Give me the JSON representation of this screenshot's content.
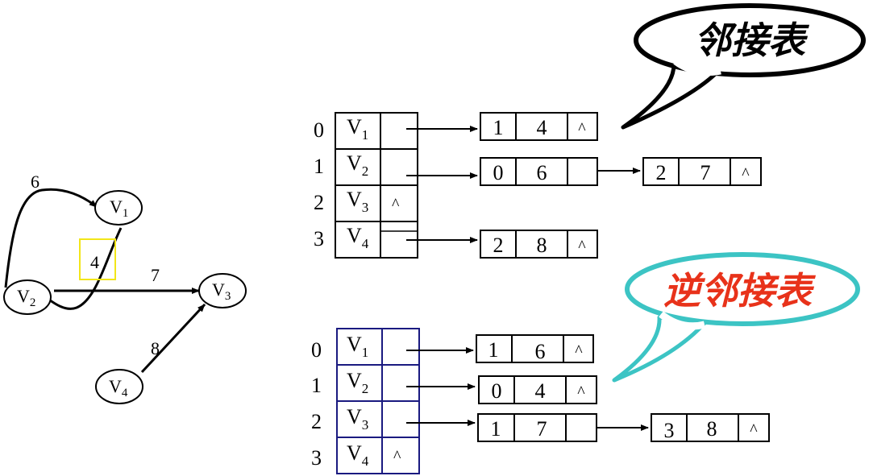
{
  "graph": {
    "vertices": [
      {
        "id": "v1",
        "letter": "V",
        "sub": "1"
      },
      {
        "id": "v2",
        "letter": "V",
        "sub": "2"
      },
      {
        "id": "v3",
        "letter": "V",
        "sub": "3"
      },
      {
        "id": "v4",
        "letter": "V",
        "sub": "4"
      }
    ],
    "edges": [
      {
        "from": "v2",
        "to": "v1",
        "weight": "6"
      },
      {
        "from": "v1",
        "to": "v2",
        "weight": "4"
      },
      {
        "from": "v2",
        "to": "v3",
        "weight": "7"
      },
      {
        "from": "v4",
        "to": "v3",
        "weight": "8"
      }
    ],
    "highlight_color": "#f2e619"
  },
  "adjacency": {
    "callout": "邻接表",
    "callout_color": "#000000",
    "border_color": "#000000",
    "rows": [
      {
        "index": "0",
        "letter": "V",
        "sub": "1",
        "nodes": [
          [
            "1",
            "4",
            "^"
          ]
        ]
      },
      {
        "index": "1",
        "letter": "V",
        "sub": "2",
        "nodes": [
          [
            "0",
            "6",
            ""
          ],
          [
            "2",
            "7",
            "^"
          ]
        ]
      },
      {
        "index": "2",
        "letter": "V",
        "sub": "3",
        "null": "^",
        "nodes": []
      },
      {
        "index": "3",
        "letter": "V",
        "sub": "4",
        "nodes": [
          [
            "2",
            "8",
            "^"
          ]
        ]
      }
    ]
  },
  "inverse": {
    "callout": "逆邻接表",
    "callout_color": "#e8321a",
    "callout_border_color": "#3cc4c4",
    "border_color": "#1a1a80",
    "rows": [
      {
        "index": "0",
        "letter": "V",
        "sub": "1",
        "nodes": [
          [
            "1",
            "6",
            "^"
          ]
        ]
      },
      {
        "index": "1",
        "letter": "V",
        "sub": "2",
        "nodes": [
          [
            "0",
            "4",
            "^"
          ]
        ]
      },
      {
        "index": "2",
        "letter": "V",
        "sub": "3",
        "nodes": [
          [
            "1",
            "7",
            ""
          ],
          [
            "3",
            "8",
            "^"
          ]
        ]
      },
      {
        "index": "3",
        "letter": "V",
        "sub": "4",
        "null": "^",
        "nodes": []
      }
    ]
  }
}
